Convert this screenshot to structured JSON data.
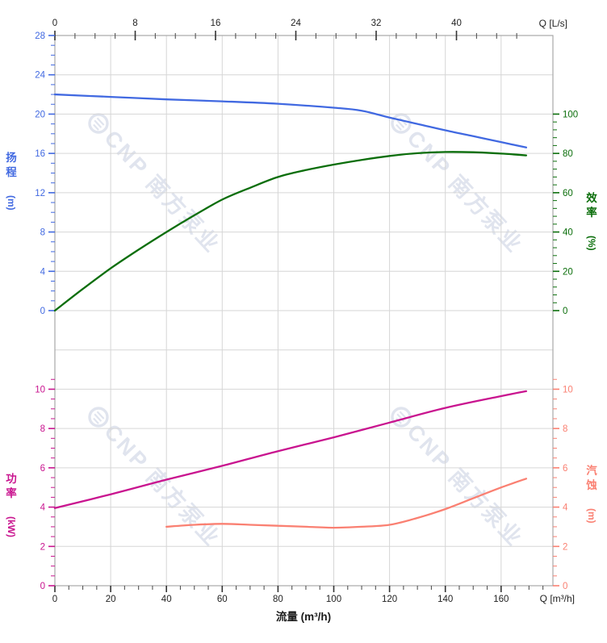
{
  "watermark": {
    "text": "CNP 南方泵业",
    "color": "#d9deea",
    "opacity": 0.8
  },
  "colors": {
    "head": "#4169e1",
    "efficiency": "#0b6e0b",
    "power": "#c9148f",
    "npsh": "#fa8072",
    "grid": "#d6d6d6",
    "frame": "#a8a8a8",
    "axis_text": "#222222",
    "background": "#ffffff"
  },
  "chart_data": {
    "type": "line",
    "title": "",
    "x_bottom": {
      "corner_label": "Q [m³/h]",
      "xlabel": "流量 (m³/h)",
      "majors": [
        0,
        20,
        40,
        60,
        80,
        100,
        120,
        140,
        160
      ],
      "minor_step": 5,
      "minor_max": 175,
      "range": [
        0,
        178.6
      ],
      "grid": true
    },
    "x_top": {
      "corner_label": "Q [L/s]",
      "majors": [
        0,
        8,
        16,
        24,
        32,
        40
      ],
      "minor_step": 2,
      "minor_max": 46,
      "range": [
        0,
        49.6
      ]
    },
    "axes": {
      "head": {
        "title": "扬程",
        "unit": "(m)",
        "side": "left",
        "panel": "top",
        "majors": [
          28,
          24,
          20,
          16,
          12,
          8,
          4,
          0
        ],
        "minor_step": 1,
        "min": 0,
        "max": 28
      },
      "efficiency": {
        "title": "效率",
        "unit": "(%)",
        "side": "right",
        "panel": "top",
        "majors": [
          100,
          80,
          60,
          40,
          20,
          0
        ],
        "minor_step": 4,
        "min": 0,
        "max": 100
      },
      "power": {
        "title": "功率",
        "unit": "(kW)",
        "side": "left",
        "panel": "bottom",
        "majors": [
          10,
          8,
          6,
          4,
          2,
          0
        ],
        "minor_step": 0.5,
        "minor_max": 10.5,
        "min": 0,
        "max": 10
      },
      "npsh": {
        "title": "汽蚀",
        "unit": "(m)",
        "side": "right",
        "panel": "bottom",
        "majors": [
          10,
          8,
          6,
          4,
          2,
          0
        ],
        "minor_step": 0.5,
        "minor_max": 10.5,
        "min": 0,
        "max": 10
      }
    },
    "series": [
      {
        "name": "扬程",
        "axis": "head",
        "color": "#4169e1",
        "points": [
          [
            0,
            22.0
          ],
          [
            20,
            21.75
          ],
          [
            40,
            21.5
          ],
          [
            60,
            21.3
          ],
          [
            80,
            21.05
          ],
          [
            100,
            20.65
          ],
          [
            110,
            20.35
          ],
          [
            120,
            19.65
          ],
          [
            130,
            19.0
          ],
          [
            140,
            18.35
          ],
          [
            150,
            17.75
          ],
          [
            160,
            17.15
          ],
          [
            169,
            16.6
          ]
        ]
      },
      {
        "name": "效率",
        "axis": "efficiency",
        "color": "#0b6e0b",
        "points": [
          [
            0,
            0
          ],
          [
            10,
            11
          ],
          [
            20,
            21.5
          ],
          [
            30,
            31
          ],
          [
            40,
            40
          ],
          [
            50,
            48.5
          ],
          [
            60,
            56.5
          ],
          [
            70,
            62.5
          ],
          [
            80,
            68
          ],
          [
            90,
            71.5
          ],
          [
            100,
            74.3
          ],
          [
            110,
            76.7
          ],
          [
            120,
            78.7
          ],
          [
            130,
            80.1
          ],
          [
            140,
            80.7
          ],
          [
            150,
            80.6
          ],
          [
            160,
            79.9
          ],
          [
            169,
            79.0
          ]
        ]
      },
      {
        "name": "功率",
        "axis": "power",
        "color": "#c9148f",
        "points": [
          [
            0,
            3.95
          ],
          [
            20,
            4.65
          ],
          [
            40,
            5.4
          ],
          [
            60,
            6.1
          ],
          [
            80,
            6.85
          ],
          [
            100,
            7.55
          ],
          [
            120,
            8.3
          ],
          [
            140,
            9.05
          ],
          [
            160,
            9.65
          ],
          [
            169,
            9.9
          ]
        ]
      },
      {
        "name": "汽蚀",
        "axis": "npsh",
        "color": "#fa8072",
        "points": [
          [
            40,
            3.0
          ],
          [
            50,
            3.1
          ],
          [
            60,
            3.15
          ],
          [
            70,
            3.1
          ],
          [
            80,
            3.05
          ],
          [
            90,
            3.0
          ],
          [
            100,
            2.95
          ],
          [
            110,
            3.0
          ],
          [
            120,
            3.1
          ],
          [
            130,
            3.45
          ],
          [
            140,
            3.9
          ],
          [
            150,
            4.45
          ],
          [
            160,
            5.0
          ],
          [
            169,
            5.45
          ]
        ]
      }
    ]
  }
}
